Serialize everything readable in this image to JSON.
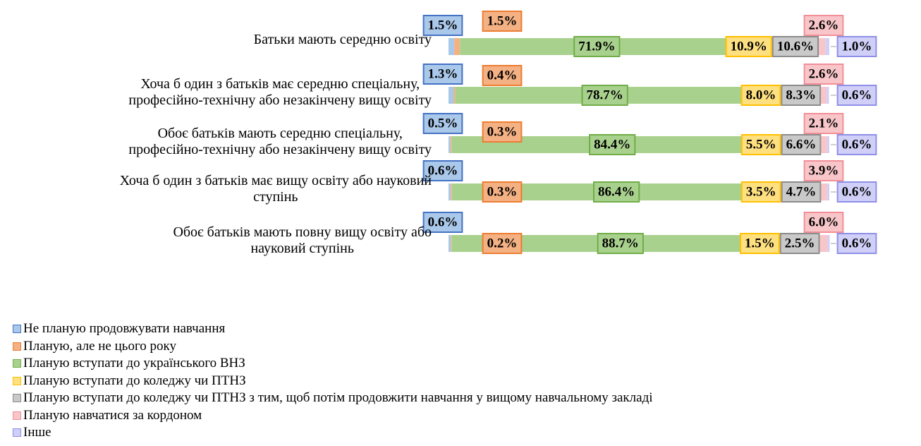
{
  "chart_data": {
    "type": "stacked_barh",
    "categories": [
      "Батьки мають середню освіту",
      "Хоча б один з батьків має середню спеціальну,\nпрофесійно-технічну або незакінчену вищу освіту",
      "Обоє батьків мають середню спеціальну,\nпрофесійно-технічну або незакінчену вищу освіту",
      "Хоча б один з батьків має вищу освіту або науковий\nступінь",
      "Обоє батьків мають повну вищу освіту або\nнауковий ступінь"
    ],
    "xlim": [
      0,
      100
    ],
    "legend": "bottom-left",
    "series": [
      {
        "name": "Не планую продовжувати навчання",
        "color": "#a9c8ea",
        "edge_color": "#4472c4",
        "values": [
          1.5,
          1.3,
          0.5,
          0.6,
          0.6
        ],
        "value_labels": [
          "1.5%",
          "1.3%",
          "0.5%",
          "0.6%",
          "0.6%"
        ]
      },
      {
        "name": "Планую, але не цього року",
        "color": "#f4b183",
        "edge_color": "#ed7d31",
        "values": [
          1.5,
          0.4,
          0.3,
          0.3,
          0.2
        ],
        "value_labels": [
          "1.5%",
          "0.4%",
          "0.3%",
          "0.3%",
          "0.2%"
        ]
      },
      {
        "name": "Планую вступати до українського ВНЗ",
        "color": "#a9d18e",
        "edge_color": "#70ad47",
        "values": [
          71.9,
          78.7,
          84.4,
          86.4,
          88.7
        ],
        "value_labels": [
          "71.9%",
          "78.7%",
          "84.4%",
          "86.4%",
          "88.7%"
        ]
      },
      {
        "name": "Планую вступати до коледжу чи ПТНЗ",
        "color": "#ffe080",
        "edge_color": "#ffc000",
        "values": [
          10.9,
          8.0,
          5.5,
          3.5,
          1.5
        ],
        "value_labels": [
          "10.9%",
          "8.0%",
          "5.5%",
          "3.5%",
          "1.5%"
        ]
      },
      {
        "name": "Планую вступати до коледжу чи ПТНЗ з тим, щоб потім продовжити навчання у вищому навчальному закладі",
        "color": "#c9c9c9",
        "edge_color": "#8c8c8c",
        "values": [
          10.6,
          8.3,
          6.6,
          4.7,
          2.5
        ],
        "value_labels": [
          "10.6%",
          "8.3%",
          "6.6%",
          "4.7%",
          "2.5%"
        ]
      },
      {
        "name": "Планую навчатися за кордоном",
        "color": "#f8c6c9",
        "edge_color": "#f28e98",
        "values": [
          2.6,
          2.6,
          2.1,
          3.9,
          6.0
        ],
        "value_labels": [
          "2.6%",
          "2.6%",
          "2.1%",
          "3.9%",
          "6.0%"
        ]
      },
      {
        "name": "Інше",
        "color": "#cfcff8",
        "edge_color": "#8f8fe8",
        "values": [
          1.0,
          0.6,
          0.6,
          0.6,
          0.6
        ],
        "value_labels": [
          "1.0%",
          "0.6%",
          "0.6%",
          "0.6%",
          "0.6%"
        ]
      }
    ]
  }
}
